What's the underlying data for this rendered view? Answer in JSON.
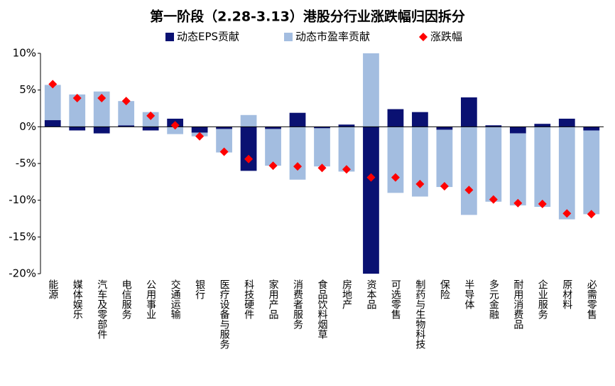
{
  "chart_data": {
    "type": "bar",
    "title": "第一阶段（2.28-3.13）港股分行业涨跌幅归因拆分",
    "categories": [
      "能源",
      "媒体娱乐",
      "汽车及零部件",
      "电信服务",
      "公用事业",
      "交通运输",
      "银行",
      "医疗设备与服务",
      "科技硬件",
      "家用产品",
      "消费者服务",
      "食品饮料烟草",
      "房地产",
      "资本品",
      "可选零售",
      "制药与生物科技",
      "保险",
      "半导体",
      "多元金融",
      "耐用消费品",
      "企业服务",
      "原材料",
      "必需零售"
    ],
    "series": [
      {
        "name": "动态EPS贡献",
        "color": "#0a1172",
        "type": "bar",
        "values": [
          0.9,
          -0.5,
          -0.9,
          0.2,
          -0.5,
          1.1,
          -0.8,
          -0.3,
          -6.0,
          -0.3,
          1.9,
          -0.2,
          0.3,
          -20,
          2.4,
          2.0,
          -0.4,
          4.0,
          0.2,
          -0.9,
          0.4,
          1.1,
          -0.5
        ]
      },
      {
        "name": "动态市盈率贡献",
        "color": "#a3bde0",
        "type": "bar",
        "values": [
          4.8,
          4.4,
          4.8,
          3.3,
          2.0,
          -1.0,
          -0.5,
          -3.2,
          1.6,
          -5.0,
          -7.2,
          -5.2,
          -6.1,
          10,
          -9.0,
          -9.5,
          -7.8,
          -12.0,
          -10.2,
          -9.8,
          -10.9,
          -12.6,
          -11.4
        ]
      },
      {
        "name": "涨跌幅",
        "color": "#ff0000",
        "type": "scatter",
        "values": [
          5.8,
          3.9,
          3.9,
          3.5,
          1.5,
          0.2,
          -1.3,
          -3.4,
          -4.4,
          -5.3,
          -5.4,
          -5.6,
          -5.8,
          -6.9,
          -6.9,
          -7.8,
          -8.1,
          -8.6,
          -9.9,
          -10.4,
          -10.5,
          -11.8,
          -11.9
        ]
      }
    ],
    "ylim": [
      -20,
      10
    ],
    "yticks": [
      {
        "value": -20,
        "label": "-20%"
      },
      {
        "value": -15,
        "label": "-15%"
      },
      {
        "value": -10,
        "label": "-10%"
      },
      {
        "value": -5,
        "label": "-5%"
      },
      {
        "value": 0,
        "label": "0%"
      },
      {
        "value": 5,
        "label": "5%"
      },
      {
        "value": 10,
        "label": "10%"
      }
    ],
    "grid": false
  }
}
